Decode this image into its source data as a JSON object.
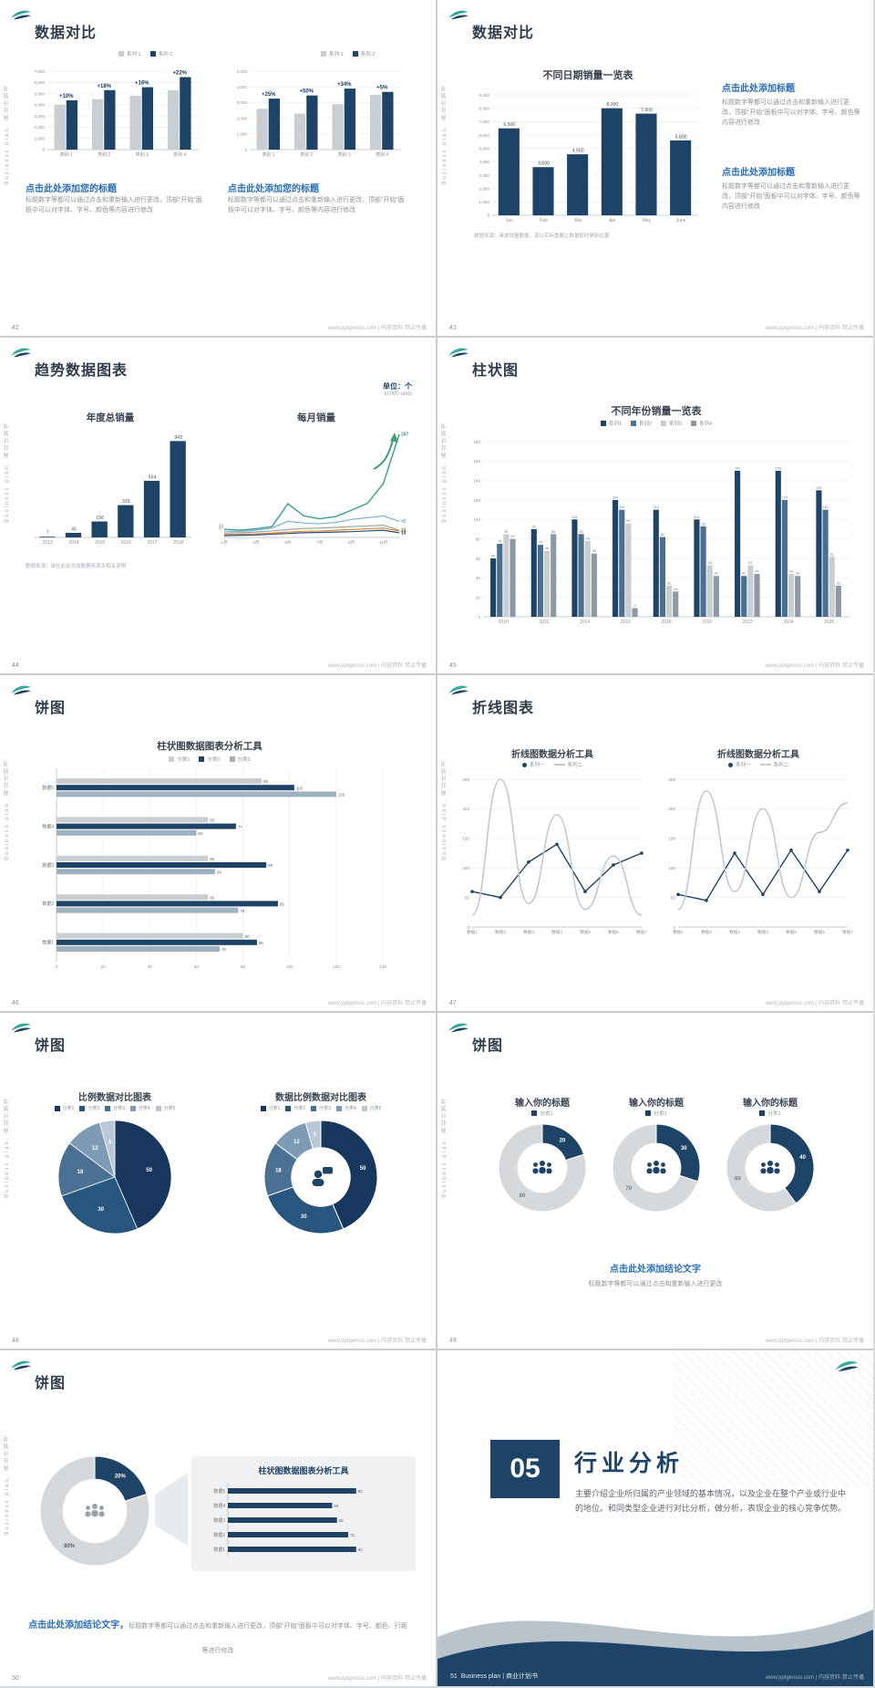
{
  "common": {
    "vertical": "Business plan. 商业计划书",
    "site": "www.pptgenius.com | 内容资料·禁止传播",
    "body_edit": "标题数字等都可以通过点击和重新输入进行更改，顶部“开始”面板中可以对字体、字号、颜色等内容进行修改",
    "source_note": "数据来源：请在此处添加数据来源及相关说明"
  },
  "palette": {
    "navy": "#1d4466",
    "blue2": "#4a6f91",
    "gray": "#c9ced3",
    "steel": "#8d9aa6",
    "light": "#9fb0bf",
    "silver": "#c3c9cf",
    "accent": "#2a6db5",
    "teal": "#35a79c",
    "pie1": "#17375e",
    "pie2": "#27567f",
    "pie3": "#4a7094",
    "pie4": "#7e9bb5",
    "pie5": "#b9c7d6",
    "donut_gray": "#d6d9dc"
  },
  "slides": {
    "s42": {
      "num": "42",
      "title": "数据对比",
      "legend": [
        "系列 1",
        "系列 2"
      ],
      "heading": "点击此处添加您的标题"
    },
    "s43": {
      "num": "43",
      "title": "数据对比",
      "chart_title": "不同日期销量一览表",
      "heading": "点击此处添加标题",
      "note": "数据来源：具体销量数据，请以实际重要之数据即时更新估算"
    },
    "s44": {
      "num": "44",
      "title": "趋势数据图表",
      "unit": "单位：个",
      "unit_sub": "in'000 units",
      "left_title": "年度总销量",
      "right_title": "每月销量"
    },
    "s45": {
      "num": "45",
      "title": "柱状图",
      "chart_title": "不同年份销量一览表",
      "legend": [
        "系列1",
        "系列2",
        "系列3",
        "系列4"
      ]
    },
    "s46": {
      "num": "46",
      "title": "饼图",
      "chart_title": "柱状图数据图表分析工具",
      "legend": [
        "分类1",
        "分类2",
        "分类3"
      ]
    },
    "s47": {
      "num": "47",
      "title": "折线图表",
      "chart_title": "折线图数据分析工具",
      "legend": [
        "系列一",
        "系列二"
      ]
    },
    "s48": {
      "num": "48",
      "title": "饼图",
      "left_title": "比例数据对比图表",
      "right_title": "数据比例数据对比图表",
      "legend": [
        "分类1",
        "分类2",
        "分类3",
        "分类4",
        "分类5"
      ]
    },
    "s49": {
      "num": "49",
      "title": "饼图",
      "col_title": "输入你的标题",
      "legend": "分类1",
      "heading": "点击此处添加结论文字",
      "body": "标题数字等都可以通过点击和重新输入进行更改"
    },
    "s50": {
      "num": "50",
      "title": "饼图",
      "panel_title": "柱状图数据图表分析工具",
      "heading": "点击此处添加结论文字，",
      "body": "标题数字等都可以通过点击和重新输入进行更改，顶部“开始”面板中可以对字体、字号、颜色、行距等进行修改"
    },
    "s51": {
      "num": "51",
      "section_no": "05",
      "section_title": "行业分析",
      "body": "主要介绍企业所归属的产业领域的基本情况，以及企业在整个产业或行业中的地位。和同类型企业进行对比分析，做分析，表现企业的核心竞争优势。",
      "footer_brand": "Business plan | 商业计划书"
    }
  },
  "chart_data": [
    {
      "id": "s42a",
      "type": "bar",
      "categories": [
        "类别 1",
        "类别 2",
        "类别 3",
        "类别 4"
      ],
      "series": [
        {
          "name": "系列 1",
          "color": "#c9ced3",
          "values": [
            4000,
            4500,
            4800,
            5300
          ]
        },
        {
          "name": "系列 2",
          "color": "#1d4466",
          "values": [
            4400,
            5310,
            5570,
            6470
          ]
        }
      ],
      "pct": [
        "+10%",
        "+18%",
        "+16%",
        "+22%"
      ],
      "ylim": [
        0,
        7000
      ],
      "ystep": 1000,
      "comma": true
    },
    {
      "id": "s42b",
      "type": "bar",
      "categories": [
        "类别 1",
        "类别 2",
        "类别 3",
        "类别 4"
      ],
      "series": [
        {
          "name": "系列 1",
          "color": "#c9ced3",
          "values": [
            2600,
            2300,
            2900,
            3500
          ]
        },
        {
          "name": "系列 2",
          "color": "#1d4466",
          "values": [
            3250,
            3450,
            3890,
            3680
          ]
        }
      ],
      "pct": [
        "+25%",
        "+50%",
        "+34%",
        "+5%"
      ],
      "ylim": [
        0,
        5000
      ],
      "ystep": 1000,
      "comma": true
    },
    {
      "id": "s43",
      "type": "bar",
      "title": "不同日期销量一览表",
      "categories": [
        "Jan",
        "Feb",
        "Mar",
        "Apr",
        "May",
        "June"
      ],
      "series": [
        {
          "name": "销量",
          "color": "#1d4466",
          "values": [
            6500,
            3600,
            4560,
            8000,
            7600,
            5600
          ]
        }
      ],
      "labels": [
        "6,500",
        "3,600",
        "4,560",
        "8,000",
        "7,600",
        "5,600"
      ],
      "ylim": [
        0,
        9000
      ],
      "ystep": 1000,
      "comma": true
    },
    {
      "id": "s44a",
      "type": "bar",
      "title": "年度总销量",
      "categories": [
        "2013",
        "2014",
        "2015",
        "2016",
        "2017",
        "2018"
      ],
      "series": [
        {
          "name": "年度总销量",
          "color": "#1d4466",
          "values": [
            7,
            45,
            156,
            316,
            554,
            943
          ]
        }
      ],
      "labels": [
        "7",
        "45",
        "156",
        "316",
        "554",
        "943"
      ],
      "ylim": [
        0,
        1000
      ]
    },
    {
      "id": "s44b",
      "type": "line",
      "title": "每月销量",
      "x": [
        "1月",
        "2月",
        "3月",
        "4月",
        "5月",
        "6月",
        "7月",
        "8月",
        "9月",
        "10月",
        "11月",
        "12月"
      ],
      "xtick_every": 2,
      "ylim": [
        0,
        300
      ],
      "end_pad": 16,
      "arrow": true,
      "series": [
        {
          "name": "系列1",
          "color": "#3b9b8f",
          "width": 1.4,
          "start_label": "23",
          "end_label": "287",
          "values": [
            23,
            20,
            24,
            30,
            94,
            60,
            52,
            58,
            76,
            95,
            150,
            287
          ]
        },
        {
          "name": "系列2",
          "color": "#7fb3d3",
          "start_label": "17",
          "end_label": "45",
          "values": [
            17,
            16,
            20,
            26,
            45,
            40,
            38,
            42,
            50,
            55,
            60,
            45
          ]
        },
        {
          "name": "系列3",
          "color": "#9aa5ae",
          "end_label": "20",
          "values": [
            12,
            13,
            15,
            18,
            22,
            25,
            26,
            28,
            30,
            32,
            34,
            20
          ]
        },
        {
          "name": "系列4",
          "color": "#e08a3c",
          "end_label": "18",
          "values": [
            8,
            9,
            10,
            12,
            15,
            17,
            18,
            20,
            22,
            24,
            26,
            18
          ]
        },
        {
          "name": "系列5",
          "color": "#2c4e6e",
          "end_label": "13",
          "values": [
            5,
            6,
            7,
            9,
            11,
            13,
            14,
            15,
            16,
            18,
            20,
            13
          ]
        }
      ]
    },
    {
      "id": "s45",
      "type": "bar",
      "title": "不同年份销量一览表",
      "categories": [
        "2010",
        "2012",
        "2014",
        "2016",
        "2018",
        "2020",
        "2022",
        "2024",
        "2026"
      ],
      "series": [
        {
          "name": "系列1",
          "color": "#1d4466",
          "values": [
            60,
            90,
            100,
            120,
            110,
            100,
            150,
            150,
            130
          ]
        },
        {
          "name": "系列2",
          "color": "#4a6f91",
          "values": [
            75,
            74,
            85,
            110,
            82,
            93,
            42,
            120,
            110
          ]
        },
        {
          "name": "系列3",
          "color": "#c9ced3",
          "values": [
            85,
            68,
            78,
            96,
            32,
            53,
            53,
            44,
            62
          ]
        },
        {
          "name": "系列4",
          "color": "#8d9aa6",
          "values": [
            80,
            85,
            65,
            9,
            26,
            42,
            44,
            42,
            32
          ]
        }
      ],
      "bar_labels": true,
      "ylim": [
        0,
        180
      ],
      "ystep": 20
    },
    {
      "id": "s46",
      "type": "hbar",
      "title": "柱状图数据图表分析工具",
      "categories": [
        "数据5",
        "数据4",
        "数据3",
        "数据2",
        "数据1"
      ],
      "series": [
        {
          "name": "分类1",
          "color": "#c9ced3",
          "values": [
            88,
            65,
            65,
            65,
            80
          ]
        },
        {
          "name": "分类2",
          "color": "#1d4466",
          "values": [
            102,
            77,
            90,
            95,
            86
          ]
        },
        {
          "name": "分类3",
          "color": "#9fb0bf",
          "values": [
            120,
            60,
            68,
            78,
            70
          ]
        }
      ],
      "xlim": [
        0,
        140
      ],
      "xstep": 20,
      "labels": true
    },
    {
      "id": "s47a",
      "type": "line",
      "title": "折线图数据分析工具",
      "x": [
        "数据1",
        "数据2",
        "数据3",
        "数据4",
        "数据5",
        "数据6",
        "数据7"
      ],
      "ylim": [
        0,
        250
      ],
      "ystep": 50,
      "series": [
        {
          "name": "系列一",
          "color": "#1d4466",
          "markers": true,
          "width": 1.4,
          "values": [
            60,
            50,
            110,
            140,
            60,
            105,
            125
          ]
        },
        {
          "name": "系列二",
          "color": "#c3c9cf",
          "smooth": true,
          "width": 1.6,
          "values": [
            20,
            250,
            40,
            190,
            30,
            120,
            20
          ]
        }
      ]
    },
    {
      "id": "s47b",
      "type": "line",
      "title": "折线图数据分析工具",
      "x": [
        "数据1",
        "数据2",
        "数据3",
        "数据4",
        "数据5",
        "数据6",
        "数据7"
      ],
      "ylim": [
        0,
        250
      ],
      "ystep": 50,
      "series": [
        {
          "name": "系列一",
          "color": "#1d4466",
          "markers": true,
          "width": 1.4,
          "values": [
            55,
            45,
            125,
            55,
            130,
            60,
            130
          ]
        },
        {
          "name": "系列二",
          "color": "#c3c9cf",
          "smooth": true,
          "width": 1.6,
          "values": [
            30,
            230,
            60,
            200,
            50,
            160,
            210
          ]
        }
      ]
    },
    {
      "id": "s48a",
      "type": "pie",
      "title": "比例数据对比图表",
      "values": [
        50,
        30,
        18,
        12,
        5
      ],
      "labels": [
        "50",
        "30",
        "18",
        "12",
        "5"
      ],
      "colors": [
        "#17375e",
        "#27567f",
        "#4a7094",
        "#7e9bb5",
        "#b9c7d6"
      ],
      "legend": [
        "分类1",
        "分类2",
        "分类3",
        "分类4",
        "分类5"
      ]
    },
    {
      "id": "s48b",
      "type": "donut",
      "title": "数据比例数据对比图表",
      "values": [
        50,
        30,
        18,
        12,
        5
      ],
      "labels": [
        "50",
        "30",
        "18",
        "12",
        "5"
      ],
      "colors": [
        "#17375e",
        "#27567f",
        "#4a7094",
        "#7e9bb5",
        "#b9c7d6"
      ],
      "inner": 0.52,
      "center_icon": "person-chat",
      "icon_color": "#1d4466",
      "legend": [
        "分类1",
        "分类2",
        "分类3",
        "分类4",
        "分类5"
      ]
    },
    {
      "id": "s49a",
      "type": "donut",
      "title": "输入你的标题",
      "values": [
        20,
        80
      ],
      "labels": [
        "20",
        "80"
      ],
      "label_colors": [
        "#ffffff",
        "#70767c"
      ],
      "colors": [
        "#1d4466",
        "#d6d9dc"
      ],
      "inner": 0.56,
      "center_icon": "people3",
      "icon_color": "#1d4466",
      "legend": [
        "分类1"
      ]
    },
    {
      "id": "s49b",
      "type": "donut",
      "title": "输入你的标题",
      "values": [
        30,
        70
      ],
      "labels": [
        "30",
        "70"
      ],
      "label_colors": [
        "#ffffff",
        "#70767c"
      ],
      "colors": [
        "#1d4466",
        "#d6d9dc"
      ],
      "inner": 0.56,
      "center_icon": "people3",
      "icon_color": "#1d4466",
      "legend": [
        "分类1"
      ]
    },
    {
      "id": "s49c",
      "type": "donut",
      "title": "输入你的标题",
      "values": [
        40,
        60
      ],
      "labels": [
        "40",
        "60"
      ],
      "label_colors": [
        "#ffffff",
        "#70767c"
      ],
      "colors": [
        "#1d4466",
        "#d6d9dc"
      ],
      "inner": 0.56,
      "center_icon": "people3",
      "icon_color": "#1d4466",
      "legend": [
        "分类1"
      ]
    },
    {
      "id": "s50a",
      "type": "donut",
      "values": [
        20,
        80
      ],
      "labels": [
        "20%",
        "80%"
      ],
      "label_colors": [
        "#ffffff",
        "#5a6066"
      ],
      "colors": [
        "#1d4466",
        "#d6d9dc"
      ],
      "inner": 0.58,
      "center_icon": "people3",
      "icon_color": "#9aa1a8"
    },
    {
      "id": "s50b",
      "type": "hbar",
      "title": "柱状图数据图表分析工具",
      "categories": [
        "数据5",
        "数据4",
        "数据3",
        "数据2",
        "数据1"
      ],
      "series": [
        {
          "name": "数据",
          "color": "#1d4466",
          "values": [
            80,
            65,
            68,
            75,
            80
          ]
        }
      ],
      "xlim": [
        0,
        100
      ],
      "labels": true
    }
  ]
}
